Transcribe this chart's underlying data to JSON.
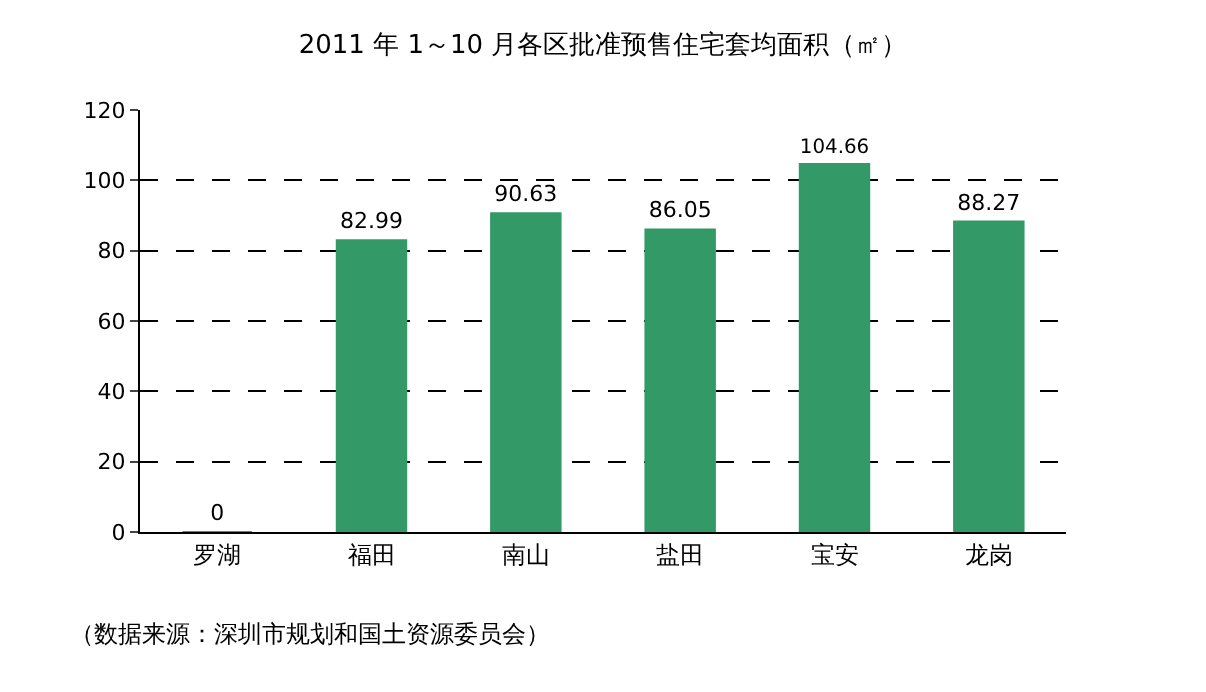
{
  "chart_data": {
    "type": "bar",
    "title": "2011 年 1～10 月各区批准预售住宅套均面积（㎡）",
    "categories": [
      "罗湖",
      "福田",
      "南山",
      "盐田",
      "宝安",
      "龙岗"
    ],
    "values": [
      0,
      82.99,
      90.63,
      86.05,
      104.66,
      88.27
    ],
    "color": "#339966",
    "ylim": [
      0,
      120
    ],
    "yticks": [
      0,
      20,
      40,
      60,
      80,
      100,
      120
    ],
    "grid": "y",
    "data_labels": true,
    "annotations": [
      "（数据来源：深圳市规划和国土资源委员会）"
    ]
  }
}
